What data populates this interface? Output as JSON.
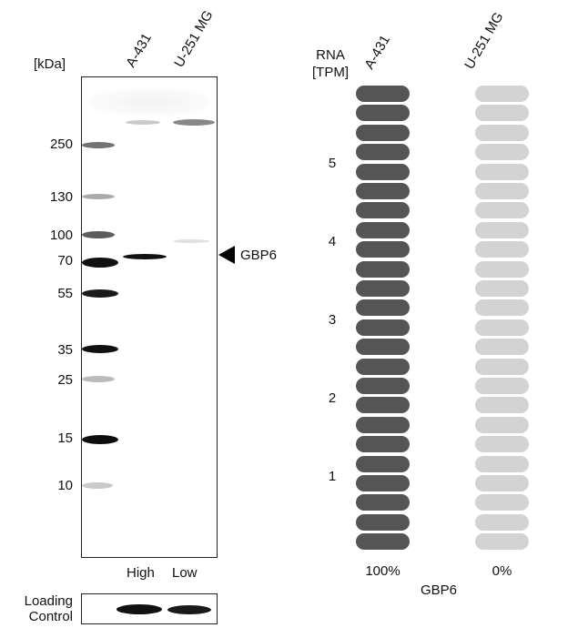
{
  "western_blot": {
    "unit_label": "[kDa]",
    "lanes": [
      "A-431",
      "U-251 MG"
    ],
    "marker_labels": [
      "250",
      "130",
      "100",
      "70",
      "55",
      "35",
      "25",
      "15",
      "10"
    ],
    "target_label": "GBP6",
    "lane_levels": [
      "High",
      "Low"
    ],
    "loading_control_label": [
      "Loading",
      "Control"
    ]
  },
  "rna": {
    "header": [
      "RNA",
      "[TPM]"
    ],
    "cell_lines": [
      "A-431",
      "U-251 MG"
    ],
    "y_ticks": [
      "5",
      "4",
      "3",
      "2",
      "1"
    ],
    "percentages": [
      "100%",
      "0%"
    ],
    "gene_label": "GBP6",
    "colors": {
      "filled": "#555555",
      "empty": "#d3d3d3"
    }
  },
  "chart_data": {
    "type": "bar",
    "title": "",
    "ylabel": "RNA [TPM]",
    "categories": [
      "A-431",
      "U-251 MG"
    ],
    "series": [
      {
        "values": [
          100,
          0
        ]
      }
    ],
    "segments_per_column": 24,
    "filled_segments": [
      24,
      0
    ],
    "y_tick_labels": [
      "1",
      "2",
      "3",
      "4",
      "5"
    ],
    "xlabel": "GBP6"
  }
}
